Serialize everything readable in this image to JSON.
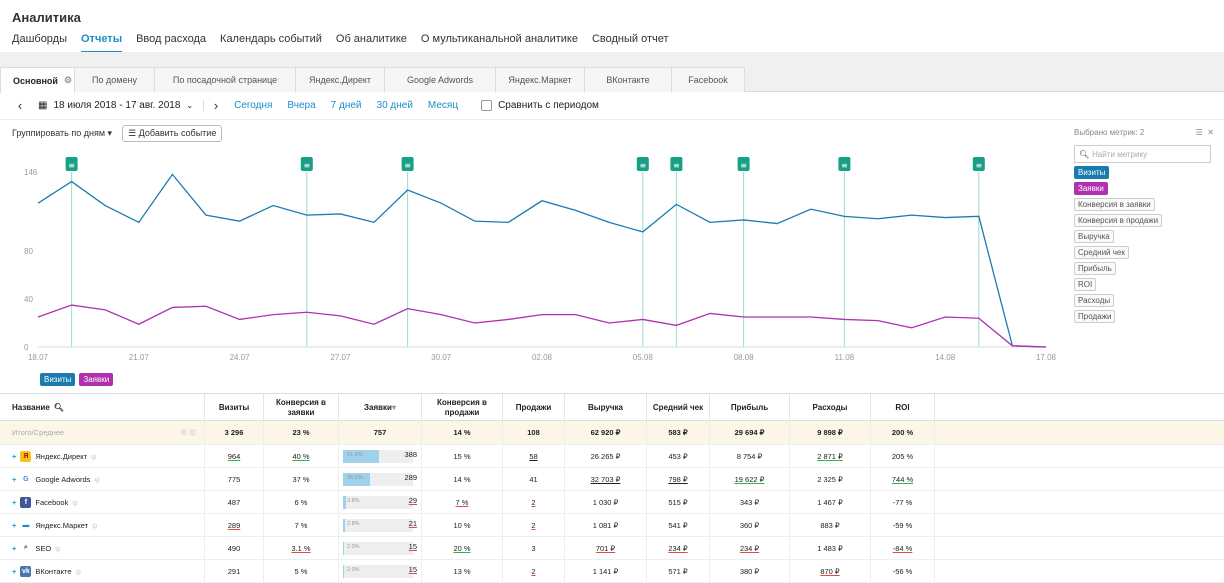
{
  "header": {
    "title": "Аналитика",
    "nav": [
      "Дашборды",
      "Отчеты",
      "Ввод расхода",
      "Календарь событий",
      "Об аналитике",
      "О мультиканальной аналитике",
      "Сводный отчет"
    ],
    "active": 1
  },
  "tabs": [
    "Основной",
    "По домену",
    "По посадочной странице",
    "Яндекс.Директ",
    "Google Adwords",
    "Яндекс.Маркет",
    "ВКонтакте",
    "Facebook"
  ],
  "datebar": {
    "range": "18 июля 2018 - 17 авг. 2018",
    "quick": [
      "Сегодня",
      "Вчера",
      "7 дней",
      "30 дней",
      "Месяц"
    ],
    "compare": "Сравнить с периодом"
  },
  "toolbar": {
    "group": "Группировать по дням",
    "add_event": "Добавить событие"
  },
  "metrics_panel": {
    "selected": "Выбрано метрик: 2",
    "search_placeholder": "Найти метрику",
    "items": [
      "Визиты",
      "Заявки",
      "Конверсия в заявки",
      "Конверсия в продажи",
      "Выручка",
      "Средний чек",
      "Прибыль",
      "ROI",
      "Расходы",
      "Продажи"
    ]
  },
  "legend": [
    "Визиты",
    "Заявки"
  ],
  "colors": {
    "visits": "#1b7bb0",
    "leads": "#b030b0",
    "event": "#16a085",
    "accent": "#1a8fc9"
  },
  "chart_data": {
    "type": "line",
    "x": [
      "18.07",
      "19.07",
      "20.07",
      "21.07",
      "22.07",
      "23.07",
      "24.07",
      "25.07",
      "26.07",
      "27.07",
      "28.07",
      "29.07",
      "30.07",
      "31.07",
      "01.08",
      "02.08",
      "03.08",
      "04.08",
      "05.08",
      "06.08",
      "07.08",
      "08.08",
      "09.08",
      "10.08",
      "11.08",
      "12.08",
      "13.08",
      "14.08",
      "15.08",
      "16.08",
      "17.08"
    ],
    "x_ticks": [
      "18.07",
      "21.07",
      "24.07",
      "27.07",
      "30.07",
      "02.08",
      "05.08",
      "08.08",
      "11.08",
      "14.08",
      "17.08"
    ],
    "y_ticks": [
      0,
      40,
      80,
      146
    ],
    "ylim": [
      0,
      146
    ],
    "series": [
      {
        "name": "Визиты",
        "values": [
          120,
          138,
          118,
          104,
          144,
          110,
          105,
          118,
          110,
          111,
          104,
          131,
          120,
          105,
          104,
          122,
          114,
          104,
          96,
          119,
          104,
          106,
          103,
          115,
          109,
          107,
          110,
          108,
          109,
          1,
          0
        ]
      },
      {
        "name": "Заявки",
        "values": [
          25,
          35,
          31,
          19,
          33,
          34,
          23,
          27,
          29,
          26,
          19,
          32,
          27,
          20,
          23,
          27,
          27,
          20,
          23,
          18,
          28,
          25,
          25,
          25,
          23,
          22,
          16,
          25,
          24,
          1,
          0
        ]
      }
    ],
    "events_at": [
      "19.07",
      "26.07",
      "29.07",
      "05.08",
      "06.08",
      "08.08",
      "11.08",
      "15.08"
    ]
  },
  "table": {
    "headers": [
      "Название",
      "Визиты",
      "Конверсия в заявки",
      "Заявки",
      "Конверсия в продажи",
      "Продажи",
      "Выручка",
      "Средний чек",
      "Прибыль",
      "Расходы",
      "ROI"
    ],
    "total": {
      "label": "Итого/Среднее",
      "cells": [
        "3 296",
        "23 %",
        "757",
        "14 %",
        "108",
        "62 920 ₽",
        "583 ₽",
        "29 694 ₽",
        "9 898 ₽",
        "200 %"
      ]
    },
    "rows": [
      {
        "name": "Яндекс.Директ",
        "icon": "yandex-direct-icon",
        "cells": [
          "964",
          "40 %",
          "",
          "15 %",
          "58",
          "26 265 ₽",
          "453 ₽",
          "8 754 ₽",
          "2 871 ₽",
          "205 %"
        ],
        "bar_pct": "51.5%",
        "bar_frac": 0.515,
        "bar_val": "388"
      },
      {
        "name": "Google Adwords",
        "icon": "google-icon",
        "cells": [
          "775",
          "37 %",
          "",
          "14 %",
          "41",
          "32 703 ₽",
          "798 ₽",
          "19 622 ₽",
          "2 325 ₽",
          "744 %"
        ],
        "bar_pct": "38.2%",
        "bar_frac": 0.382,
        "bar_val": "289"
      },
      {
        "name": "Facebook",
        "icon": "facebook-icon",
        "cells": [
          "487",
          "6 %",
          "",
          "7 %",
          "2",
          "1 030 ₽",
          "515 ₽",
          "343 ₽",
          "1 467 ₽",
          "-77 %"
        ],
        "bar_pct": "3.8%",
        "bar_frac": 0.038,
        "bar_val": "29"
      },
      {
        "name": "Яндекс.Маркет",
        "icon": "yandex-market-icon",
        "cells": [
          "289",
          "7 %",
          "",
          "10 %",
          "2",
          "1 081 ₽",
          "541 ₽",
          "360 ₽",
          "883 ₽",
          "-59 %"
        ],
        "bar_pct": "2.8%",
        "bar_frac": 0.028,
        "bar_val": "21"
      },
      {
        "name": "SEO",
        "icon": "search-icon",
        "cells": [
          "490",
          "3.1 %",
          "",
          "20 %",
          "3",
          "701 ₽",
          "234 ₽",
          "234 ₽",
          "1 483 ₽",
          "-84 %"
        ],
        "bar_pct": "2.0%",
        "bar_frac": 0.02,
        "bar_val": "15"
      },
      {
        "name": "ВКонтакте",
        "icon": "vk-icon",
        "cells": [
          "291",
          "5 %",
          "",
          "13 %",
          "2",
          "1 141 ₽",
          "571 ₽",
          "380 ₽",
          "870 ₽",
          "-56 %"
        ],
        "bar_pct": "2.0%",
        "bar_frac": 0.02,
        "bar_val": "15"
      }
    ]
  }
}
